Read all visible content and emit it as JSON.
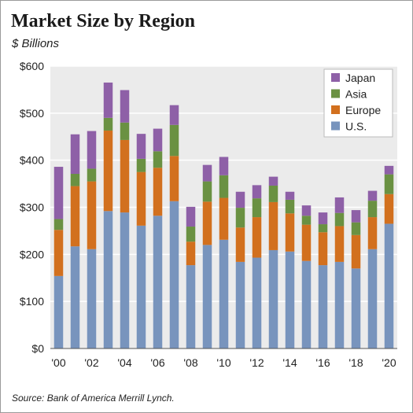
{
  "chart_data": {
    "type": "bar",
    "stacked": true,
    "title": "Market Size by Region",
    "subtitle": "$ Billions",
    "source": "Source: Bank of America Merrill Lynch.",
    "xlabel": "",
    "ylabel": "",
    "ylim": [
      0,
      600
    ],
    "y_ticks": [
      0,
      100,
      200,
      300,
      400,
      500,
      600
    ],
    "y_tick_labels": [
      "$0",
      "$100",
      "$200",
      "$300",
      "$400",
      "$500",
      "$600"
    ],
    "categories": [
      "'00",
      "'01",
      "'02",
      "'03",
      "'04",
      "'05",
      "'06",
      "'07",
      "'08",
      "'09",
      "'10",
      "'11",
      "'12",
      "'13",
      "'14",
      "'15",
      "'16",
      "'17",
      "'18",
      "'19",
      "'20"
    ],
    "x_tick_labels": [
      "'00",
      "",
      "'02",
      "",
      "'04",
      "",
      "'06",
      "",
      "'08",
      "",
      "'10",
      "",
      "'12",
      "",
      "'14",
      "",
      "'16",
      "",
      "'18",
      "",
      "'20"
    ],
    "legend_position": "top-right",
    "grid": true,
    "series": [
      {
        "name": "U.S.",
        "color": "#7894bd",
        "values": [
          154,
          217,
          211,
          292,
          289,
          261,
          282,
          313,
          177,
          220,
          231,
          184,
          193,
          209,
          206,
          186,
          177,
          184,
          170,
          211,
          265
        ]
      },
      {
        "name": "Europe",
        "color": "#d2701e",
        "values": [
          98,
          128,
          144,
          171,
          154,
          114,
          102,
          96,
          50,
          92,
          89,
          73,
          86,
          102,
          81,
          77,
          70,
          76,
          71,
          68,
          63
        ]
      },
      {
        "name": "Asia",
        "color": "#6a9142",
        "values": [
          23,
          26,
          27,
          27,
          37,
          28,
          35,
          66,
          32,
          43,
          48,
          42,
          40,
          35,
          29,
          19,
          17,
          28,
          27,
          35,
          42
        ]
      },
      {
        "name": "Japan",
        "color": "#8e60a7",
        "values": [
          111,
          84,
          80,
          75,
          69,
          53,
          48,
          42,
          42,
          35,
          39,
          34,
          28,
          19,
          17,
          22,
          25,
          33,
          26,
          21,
          18
        ]
      }
    ]
  }
}
